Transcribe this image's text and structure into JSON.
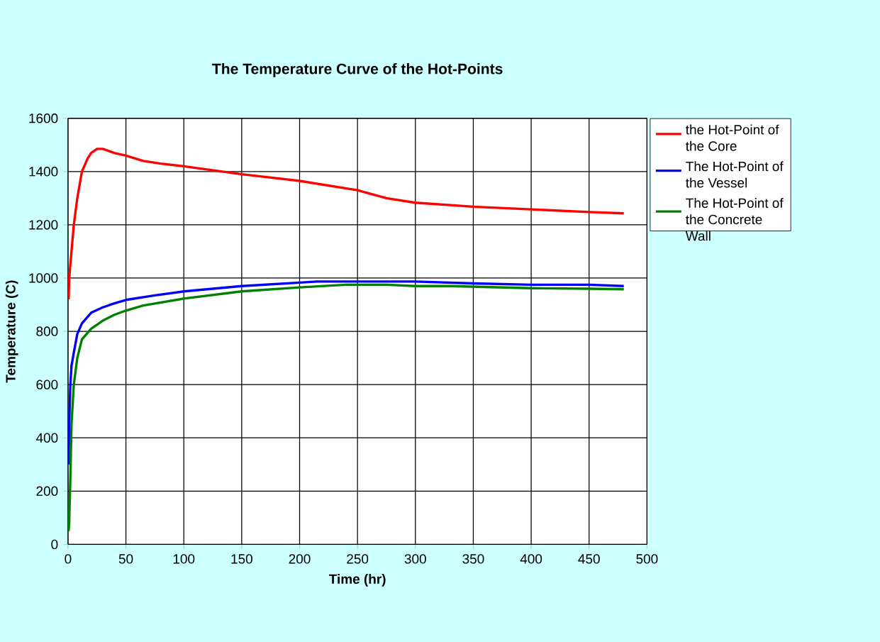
{
  "chart_data": {
    "type": "line",
    "title": "The Temperature Curve of the Hot-Points",
    "xlabel": "Time (hr)",
    "ylabel": "Temperature (C)",
    "xlim": [
      0,
      500
    ],
    "ylim": [
      0,
      1600
    ],
    "xticks": [
      0,
      50,
      100,
      150,
      200,
      250,
      300,
      350,
      400,
      450,
      500
    ],
    "yticks": [
      0,
      200,
      400,
      600,
      800,
      1000,
      1200,
      1400,
      1600
    ],
    "grid": true,
    "legend": "right",
    "marker": "none",
    "line_style": "solid",
    "series": [
      {
        "name": "the Hot-Point of the Core",
        "color": "#ff0000",
        "x": [
          0.5,
          1,
          3,
          5,
          8,
          12,
          17,
          20,
          25,
          30,
          40,
          50,
          65,
          80,
          100,
          150,
          200,
          250,
          275,
          300,
          350,
          400,
          450,
          480
        ],
        "values": [
          920,
          1000,
          1100,
          1200,
          1300,
          1400,
          1450,
          1470,
          1485,
          1485,
          1470,
          1460,
          1440,
          1430,
          1420,
          1390,
          1365,
          1330,
          1300,
          1283,
          1268,
          1258,
          1248,
          1243
        ]
      },
      {
        "name": "The Hot-Point of the Vessel",
        "color": "#0000ff",
        "x": [
          0.5,
          1,
          2,
          3,
          5,
          8,
          12,
          20,
          30,
          40,
          50,
          75,
          100,
          150,
          200,
          215,
          300,
          350,
          400,
          450,
          480
        ],
        "values": [
          300,
          450,
          600,
          670,
          720,
          790,
          830,
          870,
          890,
          905,
          918,
          935,
          950,
          970,
          983,
          987,
          987,
          980,
          975,
          975,
          970
        ]
      },
      {
        "name": "The Hot-Point of the Concrete Wall",
        "color": "#008000",
        "x": [
          0.5,
          1,
          2,
          3,
          5,
          8,
          12,
          20,
          30,
          40,
          50,
          65,
          100,
          150,
          200,
          240,
          275,
          300,
          330,
          400,
          450,
          480
        ],
        "values": [
          50,
          80,
          250,
          450,
          600,
          700,
          770,
          810,
          840,
          862,
          878,
          897,
          923,
          950,
          965,
          975,
          975,
          970,
          970,
          962,
          960,
          958
        ]
      }
    ]
  }
}
